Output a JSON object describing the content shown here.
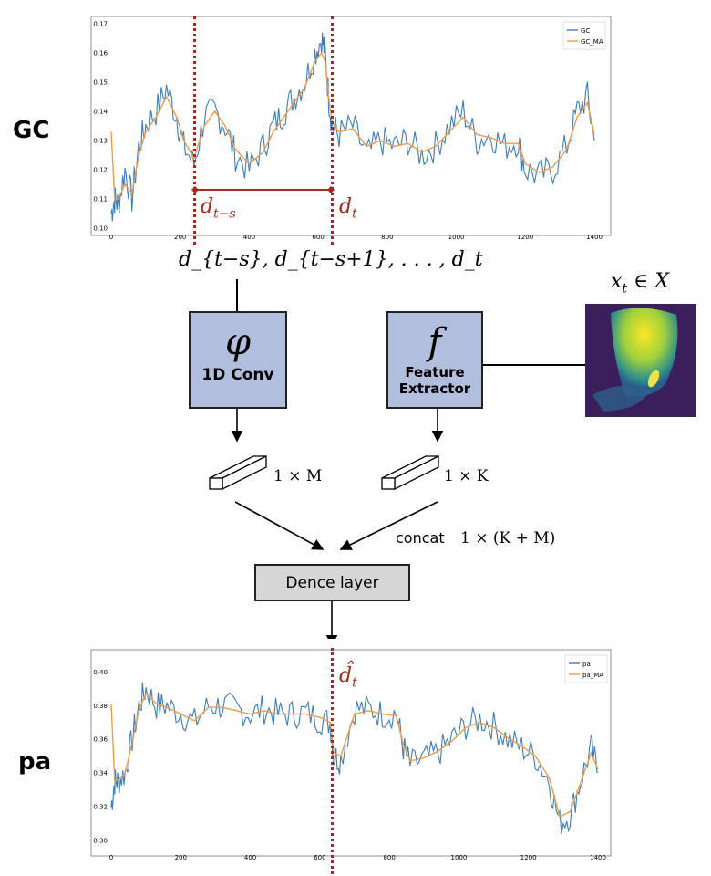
{
  "top_chart": {
    "side_label": "GC",
    "legend": [
      "GC",
      "GC_MA"
    ],
    "y_ticks": [
      "0.17",
      "0.16",
      "0.15",
      "0.14",
      "0.13",
      "0.12",
      "0.11",
      "0.10"
    ],
    "x_ticks": [
      "0",
      "200",
      "400",
      "600",
      "800",
      "1000",
      "1200",
      "1400"
    ],
    "marker_start_label": "d_{t-s}",
    "marker_end_label": "d_t"
  },
  "window_text": "d_{t−s}, d_{t−s+1}, . . . , d_t",
  "conv_block": {
    "symbol": "φ",
    "label": "1D Conv"
  },
  "feature_block": {
    "symbol": "f",
    "label_line1": "Feature",
    "label_line2": "Extractor"
  },
  "input_label": "x_t ∈ X",
  "conv_output": "1 × M",
  "feature_output": "1 × K",
  "concat_label": "concat",
  "concat_dim": "1 × (K + M)",
  "dense_label": "Dence layer",
  "bottom_chart": {
    "side_label": "pa",
    "legend": [
      "pa",
      "pa_MA"
    ],
    "y_ticks": [
      "0.40",
      "0.38",
      "0.36",
      "0.34",
      "0.32",
      "0.30"
    ],
    "x_ticks": [
      "0",
      "200",
      "400",
      "600",
      "800",
      "1000",
      "1200",
      "1400"
    ],
    "marker_label": "d̂_t"
  },
  "colors": {
    "series": "#3a7dbf",
    "moving_average": "#f09a4a",
    "marker": "#a52a1e",
    "block": "#b2bedd",
    "dense": "#d6d6d6"
  },
  "chart_data": [
    {
      "type": "line",
      "series": [
        {
          "name": "GC",
          "x": [
            0,
            10,
            20,
            40,
            60,
            80,
            100,
            130,
            160,
            190,
            210,
            240,
            270,
            300,
            330,
            360,
            400,
            440,
            470,
            500,
            530,
            560,
            590,
            610,
            620,
            630,
            640,
            660,
            700,
            740,
            780,
            820,
            860,
            900,
            940,
            980,
            1020,
            1060,
            1100,
            1140,
            1180,
            1200,
            1240,
            1280,
            1320,
            1350,
            1380,
            1400
          ],
          "y": [
            0.105,
            0.11,
            0.108,
            0.12,
            0.11,
            0.128,
            0.135,
            0.14,
            0.148,
            0.138,
            0.128,
            0.122,
            0.138,
            0.14,
            0.135,
            0.125,
            0.12,
            0.128,
            0.135,
            0.14,
            0.145,
            0.15,
            0.16,
            0.165,
            0.16,
            0.145,
            0.135,
            0.132,
            0.135,
            0.125,
            0.13,
            0.128,
            0.13,
            0.125,
            0.128,
            0.135,
            0.14,
            0.13,
            0.132,
            0.128,
            0.13,
            0.12,
            0.118,
            0.12,
            0.128,
            0.14,
            0.145,
            0.13
          ]
        },
        {
          "name": "GC_MA",
          "x": [
            0,
            10,
            20,
            40,
            60,
            80,
            100,
            130,
            160,
            190,
            210,
            240,
            270,
            300,
            330,
            360,
            400,
            440,
            470,
            500,
            530,
            560,
            590,
            610,
            620,
            630,
            640,
            660,
            700,
            740,
            780,
            820,
            860,
            900,
            940,
            980,
            1020,
            1060,
            1100,
            1140,
            1180,
            1200,
            1240,
            1280,
            1320,
            1350,
            1380,
            1400
          ],
          "y": [
            0.133,
            0.11,
            0.11,
            0.115,
            0.112,
            0.125,
            0.133,
            0.138,
            0.145,
            0.138,
            0.13,
            0.124,
            0.135,
            0.14,
            0.135,
            0.127,
            0.122,
            0.126,
            0.133,
            0.138,
            0.143,
            0.148,
            0.157,
            0.16,
            0.157,
            0.145,
            0.136,
            0.133,
            0.134,
            0.128,
            0.13,
            0.128,
            0.129,
            0.126,
            0.128,
            0.133,
            0.138,
            0.132,
            0.131,
            0.129,
            0.129,
            0.122,
            0.119,
            0.121,
            0.127,
            0.138,
            0.143,
            0.132
          ]
        }
      ],
      "xlim": [
        0,
        1400
      ],
      "ylim": [
        0.1,
        0.17
      ],
      "markers_x": [
        240,
        640
      ],
      "legend_position": "top-right"
    },
    {
      "type": "line",
      "series": [
        {
          "name": "pa",
          "x": [
            0,
            10,
            20,
            40,
            60,
            80,
            100,
            130,
            160,
            200,
            240,
            280,
            320,
            360,
            400,
            440,
            480,
            520,
            560,
            600,
            630,
            640,
            660,
            700,
            740,
            780,
            820,
            840,
            860,
            900,
            940,
            980,
            1020,
            1060,
            1100,
            1140,
            1180,
            1220,
            1260,
            1290,
            1320,
            1350,
            1380,
            1400
          ],
          "y": [
            0.32,
            0.335,
            0.335,
            0.34,
            0.36,
            0.38,
            0.39,
            0.38,
            0.38,
            0.375,
            0.37,
            0.38,
            0.38,
            0.378,
            0.375,
            0.378,
            0.375,
            0.375,
            0.376,
            0.372,
            0.37,
            0.35,
            0.348,
            0.378,
            0.378,
            0.375,
            0.375,
            0.355,
            0.345,
            0.348,
            0.352,
            0.36,
            0.368,
            0.372,
            0.368,
            0.36,
            0.355,
            0.35,
            0.335,
            0.31,
            0.315,
            0.335,
            0.355,
            0.34
          ]
        },
        {
          "name": "pa_MA",
          "x": [
            0,
            10,
            20,
            40,
            60,
            80,
            100,
            130,
            160,
            200,
            240,
            280,
            320,
            360,
            400,
            440,
            480,
            520,
            560,
            600,
            630,
            640,
            660,
            700,
            740,
            780,
            820,
            840,
            860,
            900,
            940,
            980,
            1020,
            1060,
            1100,
            1140,
            1180,
            1220,
            1260,
            1290,
            1320,
            1350,
            1380,
            1400
          ],
          "y": [
            0.381,
            0.335,
            0.336,
            0.34,
            0.358,
            0.378,
            0.387,
            0.381,
            0.379,
            0.375,
            0.371,
            0.379,
            0.379,
            0.377,
            0.375,
            0.377,
            0.375,
            0.375,
            0.375,
            0.373,
            0.37,
            0.352,
            0.35,
            0.375,
            0.377,
            0.375,
            0.374,
            0.357,
            0.347,
            0.349,
            0.353,
            0.359,
            0.367,
            0.37,
            0.367,
            0.361,
            0.356,
            0.35,
            0.337,
            0.314,
            0.317,
            0.334,
            0.352,
            0.342
          ]
        }
      ],
      "xlim": [
        0,
        1400
      ],
      "ylim": [
        0.295,
        0.41
      ],
      "markers_x": [
        640
      ],
      "legend_position": "top-right"
    }
  ]
}
